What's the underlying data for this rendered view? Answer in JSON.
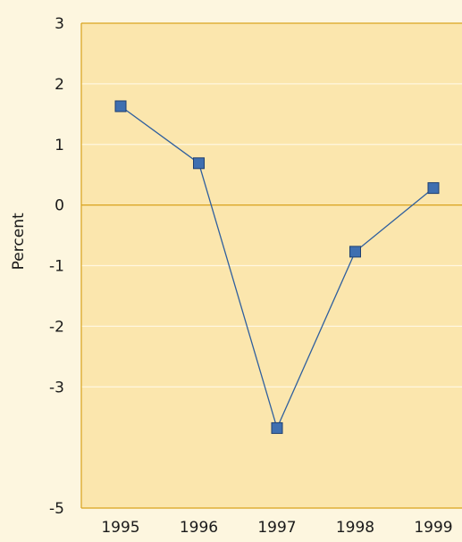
{
  "chart_data": {
    "type": "line",
    "title": "",
    "xlabel": "",
    "ylabel": "Percent",
    "categories": [
      "1995",
      "1996",
      "1997",
      "1998",
      "1999"
    ],
    "ylim": [
      -5,
      3
    ],
    "yticks": [
      "3",
      "2",
      "1",
      "0",
      "-1",
      "-2",
      "-3",
      "-5"
    ],
    "ytick_values": [
      3,
      2,
      1,
      0,
      -1,
      -2,
      -3,
      -5
    ],
    "grid": true,
    "legend": "none",
    "series": [
      {
        "values": [
          1.63,
          0.69,
          -3.68,
          -0.77,
          0.28
        ]
      }
    ],
    "colors": {
      "background": "#fdf6df",
      "plot_area": "#fbe6ad",
      "grid": "#fff7e0",
      "axis": "#d9a21c",
      "line": "#2f5f9e",
      "marker": "#3f6fb0",
      "marker_stroke": "#1f3f70"
    }
  }
}
